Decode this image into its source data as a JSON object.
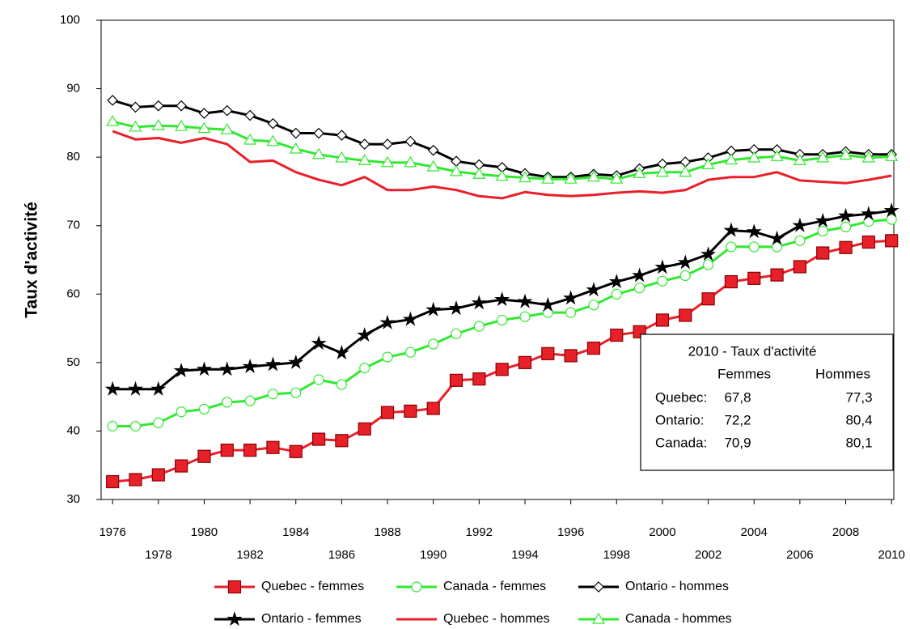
{
  "chart_data": {
    "type": "line",
    "y_label": "Taux d'activité",
    "x": [
      1976,
      1977,
      1978,
      1979,
      1980,
      1981,
      1982,
      1983,
      1984,
      1985,
      1986,
      1987,
      1988,
      1989,
      1990,
      1991,
      1992,
      1993,
      1994,
      1995,
      1996,
      1997,
      1998,
      1999,
      2000,
      2001,
      2002,
      2003,
      2004,
      2005,
      2006,
      2007,
      2008,
      2009,
      2010
    ],
    "xlim": [
      1975.5,
      2010.1
    ],
    "xticks": [
      1976,
      1978,
      1980,
      1982,
      1984,
      1986,
      1988,
      1990,
      1992,
      1994,
      1996,
      1998,
      2000,
      2002,
      2004,
      2006,
      2008,
      2010
    ],
    "ylim": [
      30,
      100
    ],
    "yticks": [
      30,
      40,
      50,
      60,
      70,
      80,
      90,
      100
    ],
    "series": [
      {
        "name": "Quebec - femmes",
        "color": "#e8202a",
        "marker": "square",
        "values": [
          32.6,
          32.9,
          33.6,
          34.9,
          36.3,
          37.2,
          37.2,
          37.6,
          37.0,
          38.8,
          38.6,
          40.3,
          42.7,
          42.9,
          43.3,
          47.4,
          47.6,
          49.0,
          50.0,
          51.3,
          51.0,
          52.1,
          54.0,
          54.5,
          56.2,
          56.9,
          59.3,
          61.8,
          62.3,
          62.8,
          64.0,
          66.0,
          66.8,
          67.6,
          67.8
        ]
      },
      {
        "name": "Canada - femmes",
        "color": "#33e833",
        "marker": "circle",
        "values": [
          40.7,
          40.7,
          41.2,
          42.8,
          43.2,
          44.2,
          44.4,
          45.4,
          45.6,
          47.5,
          46.8,
          49.2,
          50.8,
          51.5,
          52.7,
          54.2,
          55.3,
          56.2,
          56.7,
          57.3,
          57.3,
          58.4,
          60.0,
          60.9,
          61.9,
          62.7,
          64.3,
          66.9,
          66.9,
          66.9,
          67.8,
          69.2,
          69.8,
          70.6,
          70.9
        ]
      },
      {
        "name": "Ontario - hommes",
        "color": "#000000",
        "marker": "diamond",
        "values": [
          88.3,
          87.3,
          87.5,
          87.5,
          86.4,
          86.8,
          86.1,
          84.9,
          83.5,
          83.5,
          83.2,
          81.9,
          81.9,
          82.3,
          81.0,
          79.4,
          78.9,
          78.5,
          77.6,
          77.1,
          77.1,
          77.5,
          77.3,
          78.3,
          79.0,
          79.3,
          79.9,
          80.9,
          81.1,
          81.1,
          80.4,
          80.4,
          80.8,
          80.4,
          80.4
        ]
      },
      {
        "name": "Ontario - femmes",
        "color": "#000000",
        "marker": "star",
        "values": [
          46.1,
          46.1,
          46.1,
          48.8,
          49.0,
          49.0,
          49.4,
          49.7,
          50.0,
          52.8,
          51.4,
          54.0,
          55.8,
          56.3,
          57.7,
          57.9,
          58.7,
          59.2,
          58.9,
          58.4,
          59.4,
          60.6,
          61.8,
          62.7,
          63.9,
          64.6,
          65.8,
          69.3,
          69.1,
          68.1,
          70.0,
          70.7,
          71.4,
          71.7,
          72.2
        ]
      },
      {
        "name": "Quebec - hommes",
        "color": "#e8202a",
        "marker": "none",
        "values": [
          83.8,
          82.6,
          82.8,
          82.1,
          82.8,
          81.9,
          79.3,
          79.5,
          77.8,
          76.7,
          75.9,
          77.1,
          75.2,
          75.2,
          75.7,
          75.2,
          74.3,
          74.0,
          74.9,
          74.5,
          74.3,
          74.5,
          74.8,
          75.0,
          74.8,
          75.2,
          76.7,
          77.1,
          77.1,
          77.8,
          76.6,
          76.4,
          76.2,
          76.7,
          77.3
        ]
      },
      {
        "name": "Canada - hommes",
        "color": "#33e833",
        "marker": "triangle",
        "values": [
          85.2,
          84.4,
          84.6,
          84.5,
          84.2,
          84.0,
          82.5,
          82.3,
          81.2,
          80.4,
          79.9,
          79.5,
          79.2,
          79.2,
          78.6,
          77.9,
          77.5,
          77.2,
          77.0,
          76.8,
          76.8,
          77.1,
          76.8,
          77.6,
          77.8,
          77.8,
          78.9,
          79.6,
          79.9,
          80.1,
          79.5,
          79.9,
          80.3,
          79.9,
          80.1
        ]
      }
    ],
    "inset": {
      "title": "2010 - Taux d'activité",
      "columns": [
        "Femmes",
        "Hommes"
      ],
      "rows": [
        [
          "Quebec:",
          "67,8",
          "77,3"
        ],
        [
          "Ontario:",
          "72,2",
          "80,4"
        ],
        [
          "Canada:",
          "70,9",
          "80,1"
        ]
      ]
    }
  }
}
